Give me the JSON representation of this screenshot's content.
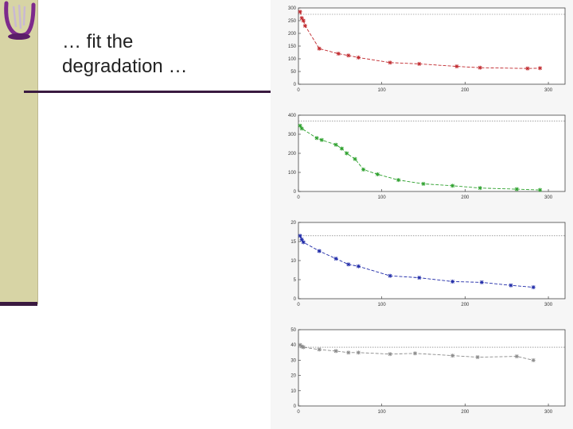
{
  "slide": {
    "title_line1": "… fit the",
    "title_line2": "degradation …"
  },
  "colors": {
    "sidebar": "#d7d4a5",
    "accent": "#3a1a40",
    "logo": "#7d2a8c"
  },
  "chart_data": [
    {
      "type": "scatter",
      "color": "#c0282d",
      "xlim": [
        0,
        320
      ],
      "ylim": [
        0,
        300
      ],
      "xticks": [
        0,
        100,
        200,
        300
      ],
      "yticks": [
        0,
        50,
        100,
        150,
        200,
        250,
        300
      ],
      "ref_line": 275,
      "points": [
        [
          2,
          285
        ],
        [
          4,
          260
        ],
        [
          6,
          250
        ],
        [
          8,
          230
        ],
        [
          25,
          140
        ],
        [
          48,
          120
        ],
        [
          60,
          113
        ],
        [
          72,
          105
        ],
        [
          110,
          85
        ],
        [
          145,
          80
        ],
        [
          190,
          70
        ],
        [
          218,
          65
        ],
        [
          275,
          62
        ],
        [
          290,
          63
        ],
        [
          335,
          62
        ]
      ]
    },
    {
      "type": "scatter",
      "color": "#2ca02c",
      "xlim": [
        0,
        320
      ],
      "ylim": [
        0,
        400
      ],
      "xticks": [
        0,
        100,
        200,
        300
      ],
      "yticks": [
        0,
        100,
        200,
        300,
        400
      ],
      "ref_line": 370,
      "points": [
        [
          2,
          345
        ],
        [
          4,
          330
        ],
        [
          22,
          280
        ],
        [
          28,
          270
        ],
        [
          45,
          245
        ],
        [
          52,
          225
        ],
        [
          58,
          200
        ],
        [
          68,
          170
        ],
        [
          78,
          115
        ],
        [
          95,
          90
        ],
        [
          120,
          60
        ],
        [
          150,
          40
        ],
        [
          185,
          30
        ],
        [
          218,
          18
        ],
        [
          262,
          12
        ],
        [
          290,
          8
        ],
        [
          330,
          5
        ]
      ]
    },
    {
      "type": "scatter",
      "color": "#1f2aa8",
      "xlim": [
        0,
        320
      ],
      "ylim": [
        0,
        20
      ],
      "xticks": [
        0,
        100,
        200,
        300
      ],
      "yticks": [
        0,
        5,
        10,
        15,
        20
      ],
      "ref_line": 16.5,
      "points": [
        [
          2,
          16.5
        ],
        [
          4,
          15.5
        ],
        [
          6,
          14.8
        ],
        [
          25,
          12.5
        ],
        [
          45,
          10.5
        ],
        [
          60,
          9
        ],
        [
          72,
          8.5
        ],
        [
          110,
          6
        ],
        [
          145,
          5.5
        ],
        [
          185,
          4.5
        ],
        [
          220,
          4.3
        ],
        [
          255,
          3.5
        ],
        [
          282,
          3
        ],
        [
          330,
          2.8
        ]
      ]
    },
    {
      "type": "scatter",
      "color": "#8a8a8a",
      "xlim": [
        0,
        320
      ],
      "ylim": [
        0,
        50
      ],
      "xticks": [
        0,
        100,
        200,
        300
      ],
      "yticks": [
        0,
        10,
        20,
        30,
        40,
        50
      ],
      "ref_line": 38.5,
      "points": [
        [
          2,
          40
        ],
        [
          4,
          39
        ],
        [
          6,
          38.5
        ],
        [
          25,
          37
        ],
        [
          45,
          36
        ],
        [
          60,
          35
        ],
        [
          72,
          35
        ],
        [
          110,
          34
        ],
        [
          140,
          34.5
        ],
        [
          185,
          33
        ],
        [
          215,
          32
        ],
        [
          262,
          32.5
        ],
        [
          282,
          30
        ],
        [
          330,
          29.5
        ]
      ]
    }
  ]
}
